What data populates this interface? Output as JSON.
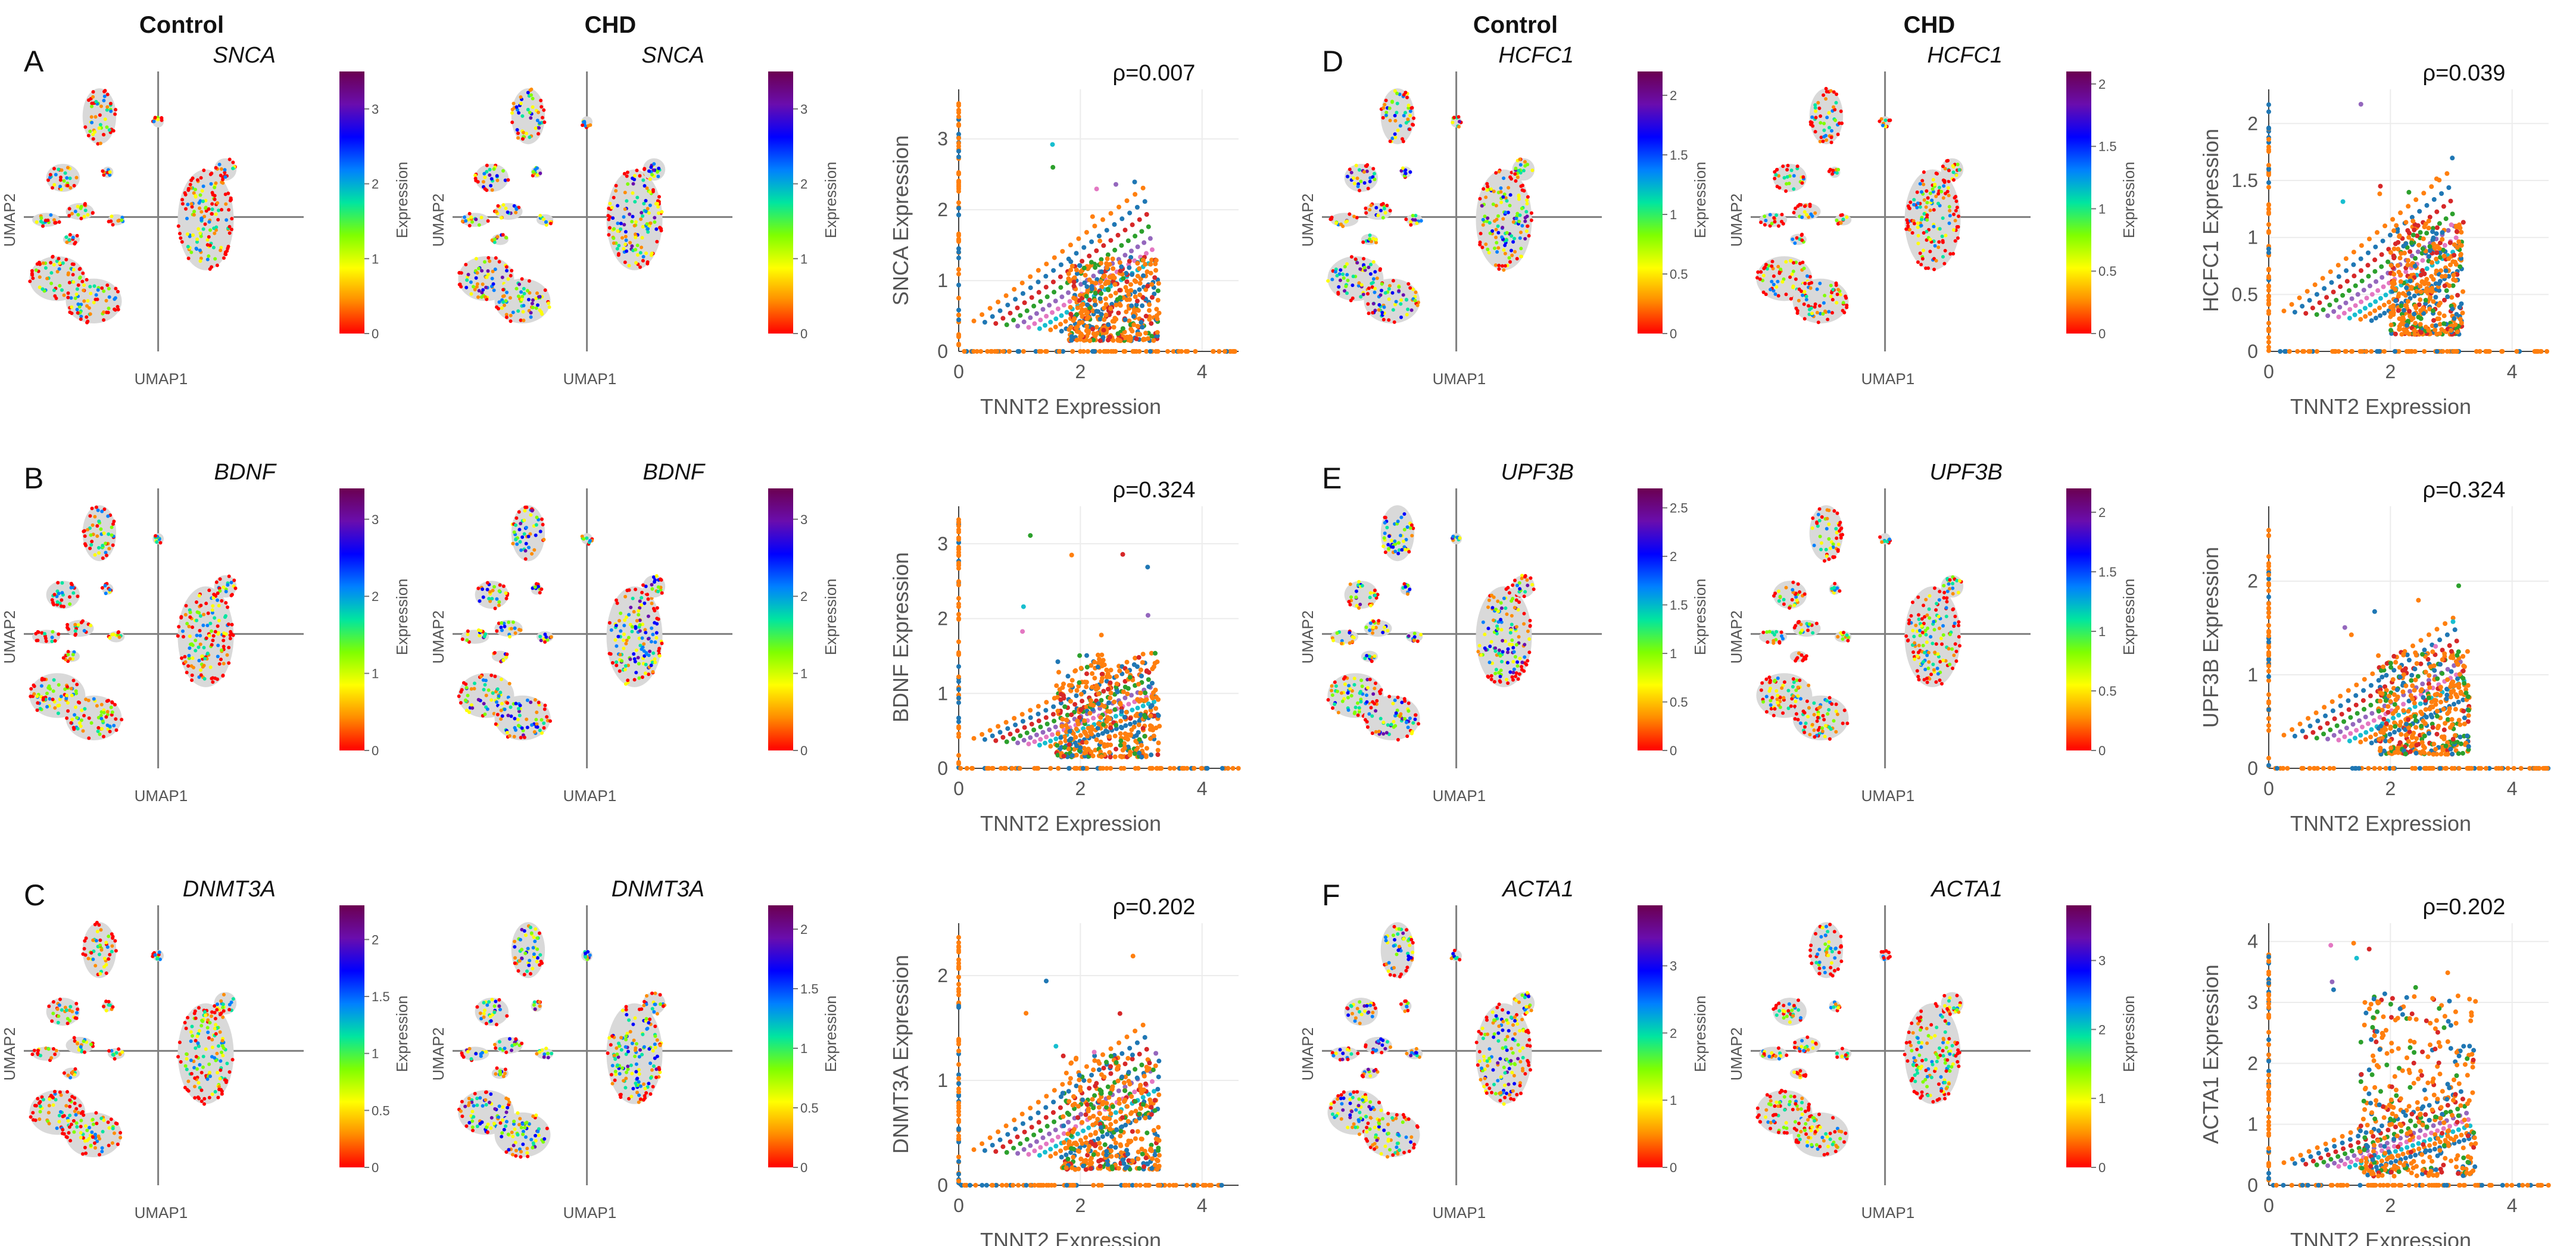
{
  "headers": {
    "left_control": "Control",
    "left_chd": "CHD",
    "right_control": "Control",
    "right_chd": "CHD"
  },
  "umap_axis": {
    "x": "UMAP1",
    "y": "UMAP2"
  },
  "colorbar_title": "Expression",
  "colors": {
    "scatter_palette": [
      "#ff7f0e",
      "#1f77b4",
      "#d62728",
      "#2ca02c",
      "#9467bd",
      "#e377c2",
      "#17becf"
    ],
    "colormap": [
      "#ff0000",
      "#ff8c00",
      "#ffff00",
      "#7fff00",
      "#00e5a0",
      "#0080ff",
      "#0000ff",
      "#6a0dad",
      "#6b0050"
    ]
  },
  "chart_data": [
    {
      "panel": "A",
      "type": "umap",
      "gene": "SNCA",
      "condition": "Control",
      "xlabel": "UMAP1",
      "ylabel": "UMAP2",
      "colorbar": {
        "title": "Expression",
        "ticks": [
          "0",
          "1",
          "2",
          "3"
        ],
        "max": 3.5
      }
    },
    {
      "panel": "A",
      "type": "umap",
      "gene": "SNCA",
      "condition": "CHD",
      "xlabel": "UMAP1",
      "ylabel": "UMAP2",
      "colorbar": {
        "title": "Expression",
        "ticks": [
          "0",
          "1",
          "2",
          "3"
        ],
        "max": 3.5
      }
    },
    {
      "panel": "A",
      "type": "scatter",
      "xlabel": "TNNT2 Expression",
      "ylabel": "SNCA Expression",
      "rho": "ρ=0.007",
      "xlim": [
        0,
        4.6
      ],
      "ylim": [
        0,
        3.7
      ],
      "xticks": [
        0,
        2,
        4
      ],
      "yticks": [
        0,
        1,
        2,
        3
      ],
      "slope_max": 1.5,
      "intercept_max": 0.6,
      "cloud": {
        "x_range": [
          1.8,
          3.3
        ],
        "y_max": 1.2,
        "outlier_max": 3
      }
    },
    {
      "panel": "D",
      "type": "umap",
      "gene": "HCFC1",
      "condition": "Control",
      "xlabel": "UMAP1",
      "ylabel": "UMAP2",
      "colorbar": {
        "title": "Expression",
        "ticks": [
          "0",
          "0.5",
          "1",
          "1.5",
          "2"
        ],
        "max": 2.2
      }
    },
    {
      "panel": "D",
      "type": "umap",
      "gene": "HCFC1",
      "condition": "CHD",
      "xlabel": "UMAP1",
      "ylabel": "UMAP2",
      "colorbar": {
        "title": "Expression",
        "ticks": [
          "0",
          "0.5",
          "1",
          "1.5",
          "2"
        ],
        "max": 2.1
      }
    },
    {
      "panel": "D",
      "type": "scatter",
      "xlabel": "TNNT2 Expression",
      "ylabel": "HCFC1 Expression",
      "rho": "ρ=0.039",
      "xlim": [
        0,
        4.6
      ],
      "ylim": [
        0,
        2.3
      ],
      "xticks": [
        0,
        2,
        4
      ],
      "yticks": [
        0,
        0.5,
        1,
        1.5,
        2
      ],
      "slope_max": 1.0,
      "intercept_max": 0.35,
      "cloud": {
        "x_range": [
          2.0,
          3.2
        ],
        "y_max": 1.0,
        "outlier_max": 2.2
      }
    },
    {
      "panel": "B",
      "type": "umap",
      "gene": "BDNF",
      "condition": "Control",
      "xlabel": "UMAP1",
      "ylabel": "UMAP2",
      "colorbar": {
        "title": "Expression",
        "ticks": [
          "0",
          "1",
          "2",
          "3"
        ],
        "max": 3.4
      }
    },
    {
      "panel": "B",
      "type": "umap",
      "gene": "BDNF",
      "condition": "CHD",
      "xlabel": "UMAP1",
      "ylabel": "UMAP2",
      "colorbar": {
        "title": "Expression",
        "ticks": [
          "0",
          "1",
          "2",
          "3"
        ],
        "max": 3.4
      }
    },
    {
      "panel": "B",
      "type": "scatter",
      "xlabel": "TNNT2 Expression",
      "ylabel": "BDNF Expression",
      "rho": "ρ=0.324",
      "xlim": [
        0,
        4.6
      ],
      "ylim": [
        0,
        3.5
      ],
      "xticks": [
        0,
        2,
        4
      ],
      "yticks": [
        0,
        1,
        2,
        3
      ],
      "slope_max": 0.9,
      "intercept_max": 0.5,
      "cloud": {
        "x_range": [
          1.6,
          3.3
        ],
        "y_max": 1.4,
        "outlier_max": 3.3
      }
    },
    {
      "panel": "E",
      "type": "umap",
      "gene": "UPF3B",
      "condition": "Control",
      "xlabel": "UMAP1",
      "ylabel": "UMAP2",
      "colorbar": {
        "title": "Expression",
        "ticks": [
          "0",
          "0.5",
          "1",
          "1.5",
          "2",
          "2.5"
        ],
        "max": 2.7
      }
    },
    {
      "panel": "E",
      "type": "umap",
      "gene": "UPF3B",
      "condition": "CHD",
      "xlabel": "UMAP1",
      "ylabel": "UMAP2",
      "colorbar": {
        "title": "Expression",
        "ticks": [
          "0",
          "0.5",
          "1",
          "1.5",
          "2"
        ],
        "max": 2.2
      }
    },
    {
      "panel": "E",
      "type": "scatter",
      "xlabel": "TNNT2 Expression",
      "ylabel": "UPF3B Expression",
      "rho": "ρ=0.324",
      "xlim": [
        0,
        4.6
      ],
      "ylim": [
        0,
        2.8
      ],
      "xticks": [
        0,
        2,
        4
      ],
      "yticks": [
        0,
        1,
        2
      ],
      "slope_max": 1.0,
      "intercept_max": 0.35,
      "cloud": {
        "x_range": [
          1.8,
          3.3
        ],
        "y_max": 1.1,
        "outlier_max": 2.0
      }
    },
    {
      "panel": "C",
      "type": "umap",
      "gene": "DNMT3A",
      "condition": "Control",
      "xlabel": "UMAP1",
      "ylabel": "UMAP2",
      "colorbar": {
        "title": "Expression",
        "ticks": [
          "0",
          "0.5",
          "1",
          "1.5",
          "2"
        ],
        "max": 2.3
      }
    },
    {
      "panel": "C",
      "type": "umap",
      "gene": "DNMT3A",
      "condition": "CHD",
      "xlabel": "UMAP1",
      "ylabel": "UMAP2",
      "colorbar": {
        "title": "Expression",
        "ticks": [
          "0",
          "0.5",
          "1",
          "1.5",
          "2"
        ],
        "max": 2.2
      }
    },
    {
      "panel": "C",
      "type": "scatter",
      "xlabel": "TNNT2 Expression",
      "ylabel": "DNMT3A Expression",
      "rho": "ρ=0.202",
      "xlim": [
        0,
        4.6
      ],
      "ylim": [
        0,
        2.5
      ],
      "xticks": [
        0,
        2,
        4
      ],
      "yticks": [
        0,
        1,
        2
      ],
      "slope_max": 0.95,
      "intercept_max": 0.3,
      "cloud": {
        "x_range": [
          1.7,
          3.3
        ],
        "y_max": 1.1,
        "outlier_max": 2.3
      }
    },
    {
      "panel": "F",
      "type": "umap",
      "gene": "ACTA1",
      "condition": "Control",
      "xlabel": "UMAP1",
      "ylabel": "UMAP2",
      "colorbar": {
        "title": "Expression",
        "ticks": [
          "0",
          "1",
          "2",
          "3"
        ],
        "max": 3.9
      }
    },
    {
      "panel": "F",
      "type": "umap",
      "gene": "ACTA1",
      "condition": "CHD",
      "xlabel": "UMAP1",
      "ylabel": "UMAP2",
      "colorbar": {
        "title": "Expression",
        "ticks": [
          "0",
          "1",
          "2",
          "3"
        ],
        "max": 3.8
      }
    },
    {
      "panel": "F",
      "type": "scatter",
      "xlabel": "TNNT2 Expression",
      "ylabel": "ACTA1 Expression",
      "rho": "ρ=0.202",
      "xlim": [
        0,
        4.6
      ],
      "ylim": [
        0,
        4.3
      ],
      "xticks": [
        0,
        2,
        4
      ],
      "yticks": [
        0,
        1,
        2,
        3,
        4
      ],
      "slope_max": 1.0,
      "intercept_max": 0.4,
      "cloud": {
        "x_range": [
          1.5,
          3.4
        ],
        "y_max": 3.0,
        "outlier_max": 4.0
      }
    }
  ]
}
